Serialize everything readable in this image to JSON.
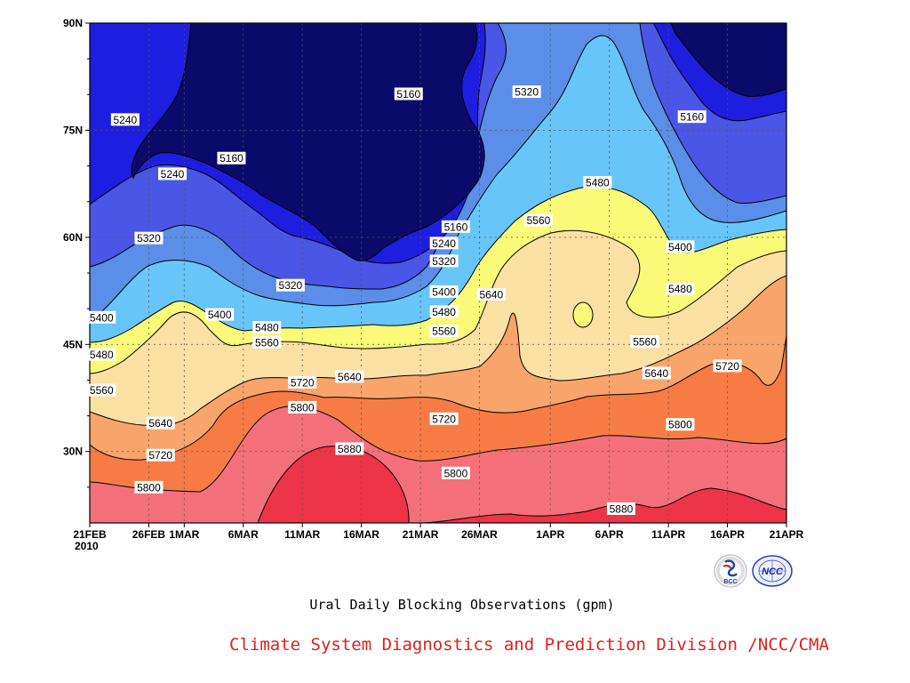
{
  "chart_data": {
    "type": "contour",
    "title": "Ural Daily Blocking Observations (gpm)",
    "x_ticks": [
      "21FEB",
      "26FEB",
      "1MAR",
      "6MAR",
      "11MAR",
      "16MAR",
      "21MAR",
      "26MAR",
      "1APR",
      "6APR",
      "11APR",
      "16APR",
      "21APR"
    ],
    "x_year": "2010",
    "x_range": [
      "2010-02-21",
      "2010-04-21"
    ],
    "y_ticks": [
      "30N",
      "45N",
      "60N",
      "75N",
      "90N"
    ],
    "y_range": [
      20,
      90
    ],
    "grid": true,
    "grid_style": "dotted",
    "levels": [
      5160,
      5240,
      5320,
      5400,
      5480,
      5560,
      5640,
      5720,
      5800,
      5880
    ],
    "fill_colors": [
      "#0a0a6b",
      "#1e1ee0",
      "#4a56e6",
      "#5b8ee8",
      "#68c5fa",
      "#fafa78",
      "#fae0a2",
      "#f8a46a",
      "#f77b45",
      "#f3707a",
      "#ee3448"
    ],
    "contour_labels": [
      {
        "value": "5160",
        "date": "2010-03-20",
        "lat": 80.1
      },
      {
        "value": "5320",
        "date": "2010-03-30",
        "lat": 80.4
      },
      {
        "value": "5240",
        "date": "2010-02-24",
        "lat": 76.5
      },
      {
        "value": "5160",
        "date": "2010-04-13",
        "lat": 76.9
      },
      {
        "value": "5160",
        "date": "2010-03-05",
        "lat": 71.1
      },
      {
        "value": "5240",
        "date": "2010-02-28",
        "lat": 68.9
      },
      {
        "value": "5480",
        "date": "2010-04-05",
        "lat": 67.7
      },
      {
        "value": "5160",
        "date": "2010-03-24",
        "lat": 61.5
      },
      {
        "value": "5320",
        "date": "2010-02-26",
        "lat": 59.9
      },
      {
        "value": "5560",
        "date": "2010-03-31",
        "lat": 62.4
      },
      {
        "value": "5240",
        "date": "2010-03-23",
        "lat": 59.2
      },
      {
        "value": "5400",
        "date": "2010-04-12",
        "lat": 58.7
      },
      {
        "value": "5320",
        "date": "2010-03-23",
        "lat": 56.7
      },
      {
        "value": "5320",
        "date": "2010-03-10",
        "lat": 53.3
      },
      {
        "value": "5400",
        "date": "2010-03-23",
        "lat": 52.4
      },
      {
        "value": "5480",
        "date": "2010-04-12",
        "lat": 52.8
      },
      {
        "value": "5640",
        "date": "2010-03-27",
        "lat": 52.0
      },
      {
        "value": "5400",
        "date": "2010-02-22",
        "lat": 48.8
      },
      {
        "value": "5400",
        "date": "2010-03-04",
        "lat": 49.2
      },
      {
        "value": "5480",
        "date": "2010-03-23",
        "lat": 49.6
      },
      {
        "value": "5480",
        "date": "2010-03-08",
        "lat": 47.4
      },
      {
        "value": "5560",
        "date": "2010-03-23",
        "lat": 46.9
      },
      {
        "value": "5560",
        "date": "2010-03-08",
        "lat": 45.3
      },
      {
        "value": "5560",
        "date": "2010-04-09",
        "lat": 45.4
      },
      {
        "value": "5480",
        "date": "2010-02-22",
        "lat": 43.6
      },
      {
        "value": "5640",
        "date": "2010-03-15",
        "lat": 40.5
      },
      {
        "value": "5640",
        "date": "2010-04-10",
        "lat": 41.0
      },
      {
        "value": "5720",
        "date": "2010-04-16",
        "lat": 42.0
      },
      {
        "value": "5720",
        "date": "2010-03-11",
        "lat": 39.7
      },
      {
        "value": "5560",
        "date": "2010-02-22",
        "lat": 38.6
      },
      {
        "value": "5800",
        "date": "2010-03-11",
        "lat": 36.2
      },
      {
        "value": "5720",
        "date": "2010-03-23",
        "lat": 34.6
      },
      {
        "value": "5640",
        "date": "2010-02-27",
        "lat": 34.0
      },
      {
        "value": "5800",
        "date": "2010-04-12",
        "lat": 33.8
      },
      {
        "value": "5880",
        "date": "2010-03-15",
        "lat": 30.4
      },
      {
        "value": "5720",
        "date": "2010-02-27",
        "lat": 29.5
      },
      {
        "value": "5800",
        "date": "2010-03-24",
        "lat": 27.0
      },
      {
        "value": "5800",
        "date": "2010-02-26",
        "lat": 25.0
      },
      {
        "value": "5880",
        "date": "2010-04-07",
        "lat": 22.0
      }
    ]
  },
  "captions": {
    "title": "Ural Daily Blocking Observations (gpm)",
    "division": "Climate System Diagnostics and Prediction Division /NCC/CMA",
    "bcc_logo_text": "BCC",
    "ncc_logo_text": "NCC"
  },
  "colors": {
    "division_text": "#e0201a",
    "frame": "#000000",
    "contour_line": "#000000"
  }
}
